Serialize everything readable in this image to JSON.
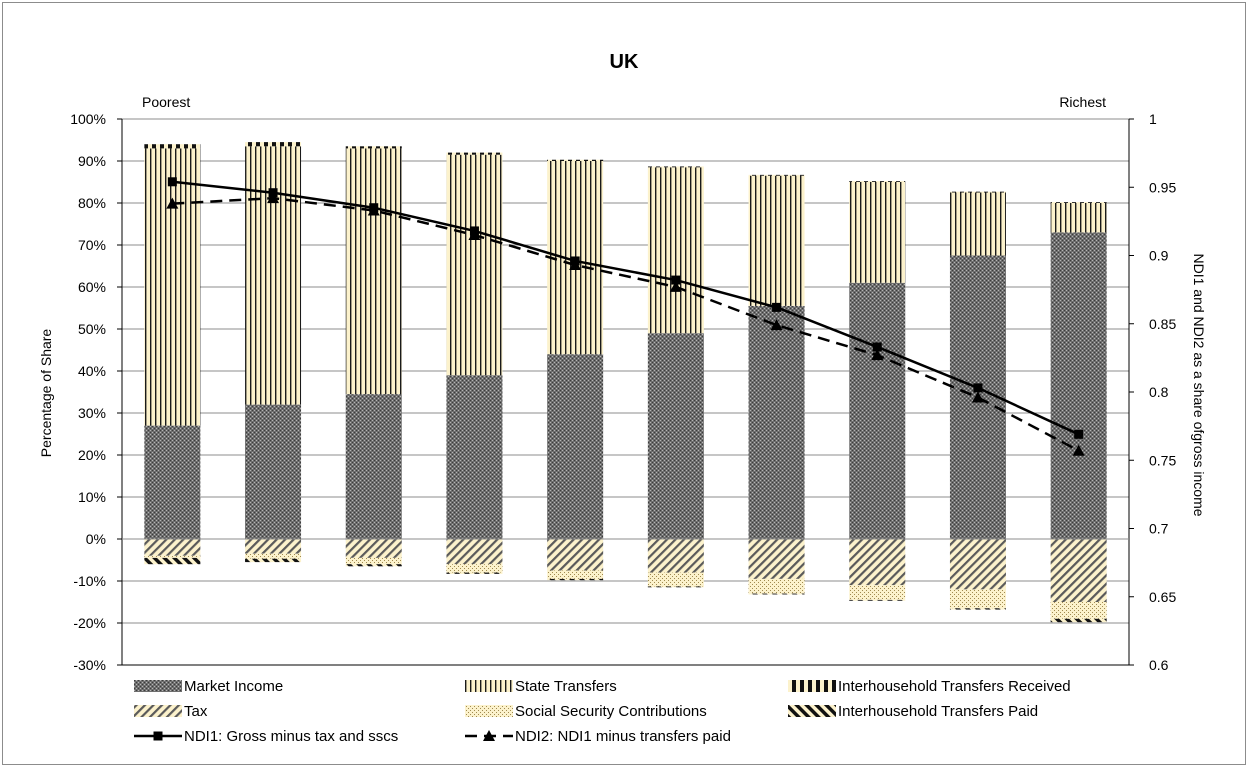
{
  "chart_data": {
    "type": "bar",
    "title": "UK",
    "left_annotation": "Poorest",
    "right_annotation": "Richest",
    "ylabel": "Percentage of Share",
    "y2label": "NDI1 and NDI2 as a share ofgross income",
    "ylim": [
      -30,
      100
    ],
    "y2lim": [
      0.6,
      1
    ],
    "yticks": [
      "100%",
      "90%",
      "80%",
      "70%",
      "60%",
      "50%",
      "40%",
      "30%",
      "20%",
      "10%",
      "0%",
      "-10%",
      "-20%",
      "-30%"
    ],
    "y2ticks": [
      "1",
      "0.95",
      "0.9",
      "0.85",
      "0.8",
      "0.75",
      "0.7",
      "0.65",
      "0.6"
    ],
    "grid": true,
    "legend_position": "bottom",
    "deciles": 10,
    "series": [
      {
        "name": "Market Income",
        "kind": "bar",
        "values": [
          27,
          32,
          34.5,
          39,
          44,
          49,
          55.5,
          61,
          67.5,
          73
        ]
      },
      {
        "name": "State Transfers",
        "kind": "bar",
        "values": [
          66,
          61.5,
          58.5,
          52.5,
          46,
          39.5,
          31,
          24,
          15,
          7
        ]
      },
      {
        "name": "Interhousehold Transfers Received",
        "kind": "bar",
        "values": [
          1,
          1,
          0.5,
          0.5,
          0.3,
          0.2,
          0.2,
          0.2,
          0.2,
          0.2
        ]
      },
      {
        "name": "Tax",
        "kind": "bar",
        "values": [
          -4,
          -3.5,
          -4.5,
          -6,
          -7.5,
          -8,
          -9.5,
          -11,
          -12,
          -15
        ]
      },
      {
        "name": "Social Security Contributions",
        "kind": "bar",
        "values": [
          -0.5,
          -1.2,
          -1.5,
          -2,
          -2,
          -3.3,
          -3.5,
          -3.5,
          -4.5,
          -4
        ]
      },
      {
        "name": "Interhousehold Transfers Paid",
        "kind": "bar",
        "values": [
          -1.5,
          -0.8,
          -0.5,
          -0.3,
          -0.3,
          -0.2,
          -0.2,
          -0.2,
          -0.3,
          -0.8
        ]
      },
      {
        "name": "NDI1: Gross minus tax and sscs",
        "kind": "line",
        "axis": "right",
        "values": [
          0.954,
          0.946,
          0.935,
          0.918,
          0.896,
          0.882,
          0.862,
          0.833,
          0.803,
          0.769
        ]
      },
      {
        "name": "NDI2: NDI1 minus transfers paid",
        "kind": "line",
        "axis": "right",
        "values": [
          0.938,
          0.942,
          0.933,
          0.915,
          0.893,
          0.877,
          0.849,
          0.827,
          0.796,
          0.757
        ]
      }
    ]
  }
}
